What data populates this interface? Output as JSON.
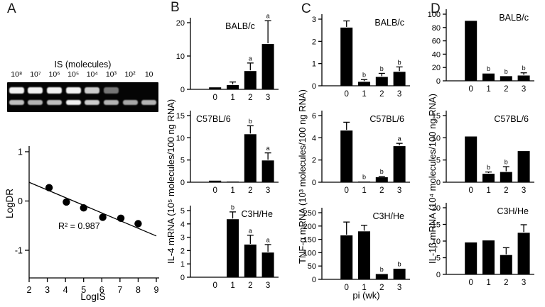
{
  "figure": {
    "xlabel_shared": "pi (wk)",
    "colors": {
      "bar": "#000000",
      "background": "#ffffff",
      "gel_background": "#050505",
      "gel_band": "#ffffff"
    }
  },
  "panels": {
    "A": {
      "letter": "A"
    },
    "B": {
      "letter": "B",
      "ylabel": "IL-4 mRNA (10⁵ molecules/100 ng RNA)"
    },
    "C": {
      "letter": "C",
      "ylabel": "TNF-α mRNA (10³ molecules/100 ng RNA)"
    },
    "D": {
      "letter": "D",
      "ylabel": "IL-1β mRNA (10⁴ molecules/100 ng RNA)"
    }
  },
  "gel": {
    "title": "IS (molecules)",
    "lane_labels": [
      "10⁸",
      "10⁷",
      "10⁶",
      "10⁵",
      "10⁴",
      "10³",
      "10²",
      "10"
    ],
    "top_band_intensity": [
      0.95,
      0.95,
      0.95,
      0.95,
      0.8,
      0.45,
      0,
      0
    ],
    "bottom_band_intensity": [
      0.75,
      0.7,
      0.75,
      0.95,
      0.8,
      0.7,
      0.65,
      0.7
    ]
  },
  "chart_data": [
    {
      "type": "scatter",
      "panel": "A",
      "xlabel": "LogIS",
      "ylabel": "LogDR",
      "annotation": "R² = 0.987",
      "xlim": [
        2,
        9
      ],
      "ylim": [
        -1,
        1
      ],
      "xticks": [
        2,
        3,
        4,
        5,
        6,
        7,
        8,
        9
      ],
      "yticks": [
        1,
        0,
        -1
      ],
      "points": [
        [
          3.1,
          0.27
        ],
        [
          4.05,
          -0.02
        ],
        [
          5.0,
          -0.14
        ],
        [
          6.05,
          -0.33
        ],
        [
          7.05,
          -0.35
        ],
        [
          8.0,
          -0.46
        ]
      ],
      "fit_line": {
        "x1": 2,
        "y1": 0.38,
        "x2": 9,
        "y2": -0.71
      }
    },
    {
      "type": "bar",
      "panel": "B",
      "strain": "BALB/c",
      "label_pos": "center",
      "categories": [
        "0",
        "1",
        "2",
        "3"
      ],
      "values": [
        0.6,
        1.3,
        5.5,
        13.6
      ],
      "errors": [
        0,
        0.9,
        2.4,
        7.0
      ],
      "letters": [
        "",
        "",
        "a",
        "a"
      ],
      "ylim": [
        0,
        20
      ],
      "yticks": [
        0,
        10,
        20
      ]
    },
    {
      "type": "bar",
      "panel": "B",
      "strain": "C57BL/6",
      "label_pos": "left",
      "categories": [
        "0",
        "1",
        "2",
        "3"
      ],
      "values": [
        0.35,
        0.15,
        10.8,
        4.9
      ],
      "errors": [
        0,
        0,
        1.9,
        1.7
      ],
      "letters": [
        "",
        "",
        "b",
        "a"
      ],
      "ylim": [
        0,
        15
      ],
      "yticks": [
        0,
        5,
        10,
        15
      ]
    },
    {
      "type": "bar",
      "panel": "B",
      "strain": "C3H/He",
      "label_pos": "right",
      "categories": [
        "0",
        "1",
        "2",
        "3"
      ],
      "values": [
        0,
        4.35,
        2.45,
        1.85
      ],
      "errors": [
        0,
        0.55,
        0.7,
        0.6
      ],
      "letters": [
        "",
        "b",
        "a",
        "a"
      ],
      "ylim": [
        0,
        5
      ],
      "yticks": [
        0,
        1,
        2,
        3,
        4,
        5
      ]
    },
    {
      "type": "bar",
      "panel": "C",
      "strain": "BALB/c",
      "label_pos": "right",
      "categories": [
        "0",
        "1",
        "2",
        "3"
      ],
      "values": [
        2.62,
        0.18,
        0.4,
        0.63
      ],
      "errors": [
        0.3,
        0.1,
        0.16,
        0.22
      ],
      "letters": [
        "",
        "b",
        "b",
        "b"
      ],
      "ylim": [
        0,
        3
      ],
      "yticks": [
        0,
        1,
        2,
        3
      ]
    },
    {
      "type": "bar",
      "panel": "C",
      "strain": "C57BL/6",
      "label_pos": "right",
      "categories": [
        "0",
        "1",
        "2",
        "3"
      ],
      "values": [
        4.65,
        0.06,
        0.45,
        3.25
      ],
      "errors": [
        0.75,
        0,
        0.08,
        0.25
      ],
      "letters": [
        "",
        "b",
        "b",
        "a"
      ],
      "ylim": [
        0,
        6
      ],
      "yticks": [
        0,
        2,
        4,
        6
      ]
    },
    {
      "type": "bar",
      "panel": "C",
      "strain": "C3H/He",
      "label_pos": "right",
      "categories": [
        "0",
        "1",
        "2",
        "3"
      ],
      "values": [
        165,
        180,
        20,
        40
      ],
      "errors": [
        50,
        23,
        0,
        0
      ],
      "letters": [
        "",
        "",
        "b",
        "b"
      ],
      "ylim": [
        0,
        250
      ],
      "yticks": [
        0,
        50,
        100,
        150,
        200,
        250
      ]
    },
    {
      "type": "bar",
      "panel": "D",
      "strain": "BALB/c",
      "label_pos": "right",
      "categories": [
        "0",
        "1",
        "2",
        "3"
      ],
      "values": [
        90,
        11,
        7,
        8
      ],
      "errors": [
        0,
        0,
        0,
        4
      ],
      "letters": [
        "",
        "b",
        "b",
        "b"
      ],
      "ylim": [
        0,
        100
      ],
      "yticks": [
        0,
        20,
        40,
        60,
        80,
        100
      ]
    },
    {
      "type": "bar",
      "panel": "D",
      "strain": "C57BL/6",
      "label_pos": "right",
      "categories": [
        "0",
        "1",
        "2",
        "3"
      ],
      "values": [
        10.3,
        1.9,
        2.3,
        7.0
      ],
      "errors": [
        0,
        0.4,
        1.2,
        0
      ],
      "letters": [
        "",
        "b",
        "b",
        ""
      ],
      "ylim": [
        0,
        15
      ],
      "yticks": [
        0,
        5,
        10,
        15
      ]
    },
    {
      "type": "bar",
      "panel": "D",
      "strain": "C3H/He",
      "label_pos": "right",
      "categories": [
        "0",
        "1",
        "2",
        "3"
      ],
      "values": [
        9.6,
        10.2,
        5.8,
        12.5
      ],
      "errors": [
        0,
        0,
        2.2,
        2.4
      ],
      "letters": [
        "",
        "",
        "",
        ""
      ],
      "ylim": [
        0,
        20
      ],
      "yticks": [
        0,
        5,
        10,
        15,
        20
      ]
    }
  ]
}
